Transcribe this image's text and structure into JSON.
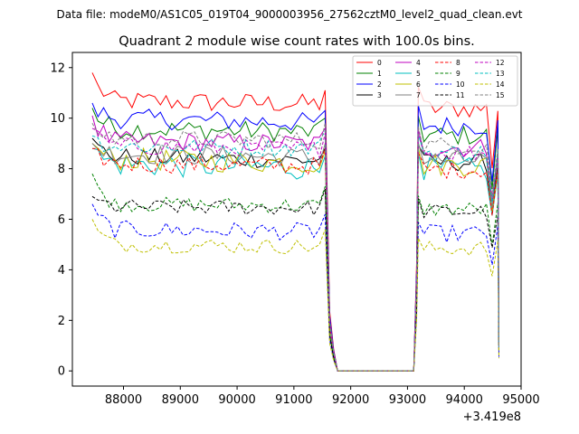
{
  "figure": {
    "suptitle": "Data file: modeM0/AS1C05_019T04_9000003956_27562cztM0_level2_quad_clean.evt"
  },
  "chart_data": {
    "type": "line",
    "title": "Quadrant 2 module wise count rates with 100.0s bins.",
    "xlabel": "",
    "ylabel": "",
    "x_offset_label": "+3.419e8",
    "xlim": [
      87100,
      95000
    ],
    "ylim": [
      -0.6,
      12.6
    ],
    "xticks": [
      88000,
      89000,
      90000,
      91000,
      92000,
      93000,
      94000,
      95000
    ],
    "xtick_labels": [
      "88000",
      "89000",
      "90000",
      "91000",
      "92000",
      "93000",
      "94000",
      "95000"
    ],
    "yticks": [
      0,
      2,
      4,
      6,
      8,
      10,
      12
    ],
    "ytick_labels": [
      "0",
      "2",
      "4",
      "6",
      "8",
      "10",
      "12"
    ],
    "grid": false,
    "legend_position": "top-right",
    "segment1_start": 87450,
    "segment1_count": 42,
    "segment2_start": 93150,
    "segment2_count": 15,
    "bin_width": 100,
    "series": [
      {
        "name": "0",
        "color": "#ff0000",
        "dashed": false,
        "level": 10.7,
        "start": 11.8,
        "tail": 10.2,
        "spread": 0.4
      },
      {
        "name": "1",
        "color": "#008000",
        "dashed": false,
        "level": 9.6,
        "start": 10.4,
        "tail": 9.1,
        "spread": 0.4
      },
      {
        "name": "2",
        "color": "#0000ff",
        "dashed": false,
        "level": 10.0,
        "start": 10.6,
        "tail": 9.4,
        "spread": 0.4
      },
      {
        "name": "3",
        "color": "#000000",
        "dashed": false,
        "level": 8.5,
        "start": 9.2,
        "tail": 7.9,
        "spread": 0.35
      },
      {
        "name": "4",
        "color": "#bf00bf",
        "dashed": false,
        "level": 9.1,
        "start": 10.1,
        "tail": 8.7,
        "spread": 0.4
      },
      {
        "name": "5",
        "color": "#00bfbf",
        "dashed": false,
        "level": 8.2,
        "start": 8.8,
        "tail": 7.6,
        "spread": 0.5
      },
      {
        "name": "6",
        "color": "#bfbf00",
        "dashed": false,
        "level": 8.4,
        "start": 9.0,
        "tail": 7.8,
        "spread": 0.45
      },
      {
        "name": "7",
        "color": "#808080",
        "dashed": false,
        "level": 8.6,
        "start": 9.0,
        "tail": 8.1,
        "spread": 0.4
      },
      {
        "name": "8",
        "color": "#ff0000",
        "dashed": true,
        "level": 8.2,
        "start": 8.8,
        "tail": 7.9,
        "spread": 0.35
      },
      {
        "name": "9",
        "color": "#008000",
        "dashed": true,
        "level": 6.6,
        "start": 7.8,
        "tail": 6.4,
        "spread": 0.3
      },
      {
        "name": "10",
        "color": "#0000ff",
        "dashed": true,
        "level": 5.6,
        "start": 6.6,
        "tail": 5.3,
        "spread": 0.35
      },
      {
        "name": "11",
        "color": "#000000",
        "dashed": true,
        "level": 6.5,
        "start": 6.9,
        "tail": 6.3,
        "spread": 0.3
      },
      {
        "name": "12",
        "color": "#bf00bf",
        "dashed": true,
        "level": 8.9,
        "start": 9.6,
        "tail": 8.5,
        "spread": 0.35
      },
      {
        "name": "13",
        "color": "#00bfbf",
        "dashed": true,
        "level": 8.9,
        "start": 9.3,
        "tail": 8.6,
        "spread": 0.35
      },
      {
        "name": "14",
        "color": "#bfbf00",
        "dashed": true,
        "level": 5.0,
        "start": 6.0,
        "tail": 4.7,
        "spread": 0.3
      },
      {
        "name": "15",
        "color": "#808080",
        "dashed": true,
        "level": 9.2,
        "start": 9.8,
        "tail": 8.9,
        "spread": 0.35
      }
    ]
  }
}
